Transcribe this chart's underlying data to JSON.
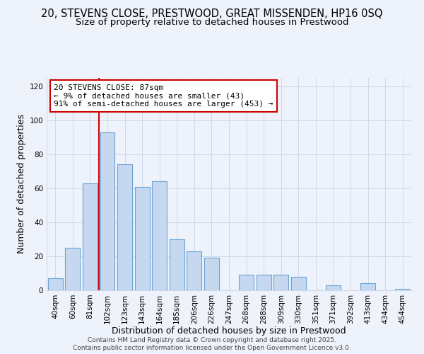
{
  "title_line1": "20, STEVENS CLOSE, PRESTWOOD, GREAT MISSENDEN, HP16 0SQ",
  "title_line2": "Size of property relative to detached houses in Prestwood",
  "xlabel": "Distribution of detached houses by size in Prestwood",
  "ylabel": "Number of detached properties",
  "bar_labels": [
    "40sqm",
    "60sqm",
    "81sqm",
    "102sqm",
    "123sqm",
    "143sqm",
    "164sqm",
    "185sqm",
    "206sqm",
    "226sqm",
    "247sqm",
    "268sqm",
    "288sqm",
    "309sqm",
    "330sqm",
    "351sqm",
    "371sqm",
    "392sqm",
    "413sqm",
    "434sqm",
    "454sqm"
  ],
  "bar_values": [
    7,
    25,
    63,
    93,
    74,
    61,
    64,
    30,
    23,
    19,
    0,
    9,
    9,
    9,
    8,
    0,
    3,
    0,
    4,
    0,
    1
  ],
  "bar_color": "#c5d8f0",
  "bar_edge_color": "#6aa4d4",
  "ylim": [
    0,
    125
  ],
  "yticks": [
    0,
    20,
    40,
    60,
    80,
    100,
    120
  ],
  "vline_bar_index": 2,
  "vline_color": "#cc0000",
  "annotation_title": "20 STEVENS CLOSE: 87sqm",
  "annotation_line2": "← 9% of detached houses are smaller (43)",
  "annotation_line3": "91% of semi-detached houses are larger (453) →",
  "footer_line1": "Contains HM Land Registry data © Crown copyright and database right 2025.",
  "footer_line2": "Contains public sector information licensed under the Open Government Licence v3.0.",
  "bg_color": "#eef2fa",
  "grid_color": "#d0d8eb",
  "title_fontsize": 10.5,
  "subtitle_fontsize": 9.5,
  "axis_label_fontsize": 9,
  "tick_fontsize": 7.5,
  "annotation_fontsize": 8,
  "footer_fontsize": 6.5
}
